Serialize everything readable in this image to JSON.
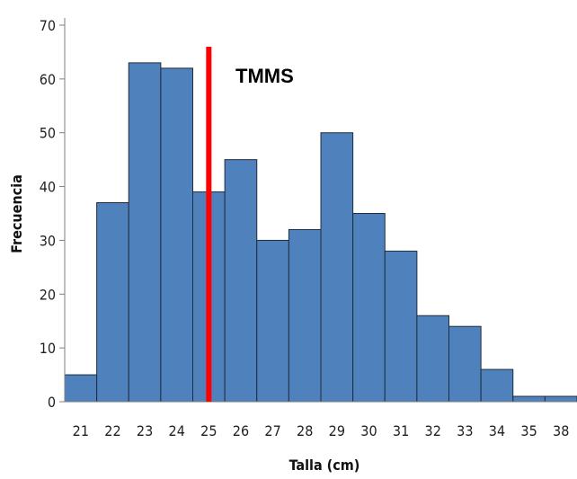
{
  "chart_data": {
    "type": "bar",
    "title": "",
    "xlabel": "Talla (cm)",
    "ylabel": "Frecuencia",
    "categories": [
      "21",
      "22",
      "23",
      "24",
      "25",
      "26",
      "27",
      "28",
      "29",
      "30",
      "31",
      "32",
      "33",
      "34",
      "35",
      "38"
    ],
    "values": [
      5,
      37,
      63,
      62,
      39,
      45,
      30,
      32,
      50,
      35,
      28,
      16,
      14,
      6,
      1,
      1
    ],
    "yticks": [
      0,
      10,
      20,
      30,
      40,
      50,
      60,
      70
    ],
    "ylim": [
      0,
      70
    ],
    "grid": false,
    "legend": "none",
    "bar_color": "#4f81bd",
    "bar_edge_color": "#1f2d3d",
    "reference_line": {
      "label": "TMMS",
      "x": 25,
      "color": "#ff0000"
    }
  }
}
